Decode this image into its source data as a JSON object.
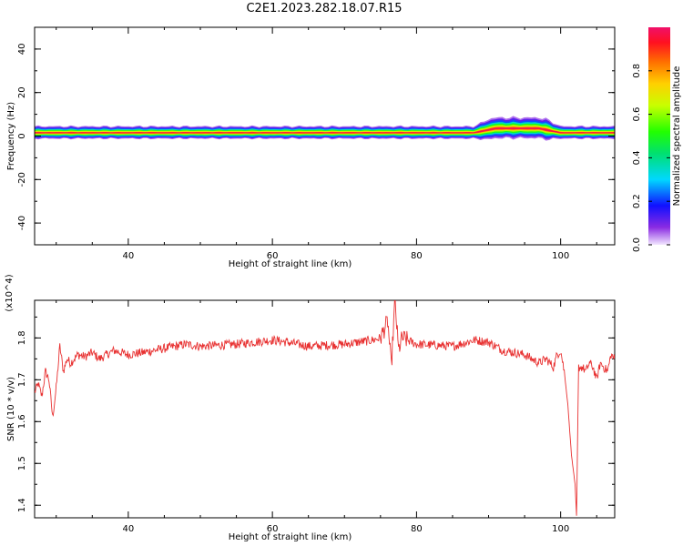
{
  "title": "C2E1.2023.282.18.07.R15",
  "chart_data": [
    {
      "type": "heatmap",
      "xlabel": "Height of straight line (km)",
      "ylabel": "Frequency (Hz)",
      "xlim": [
        27,
        107.5
      ],
      "ylim": [
        -50,
        50
      ],
      "xticks": [
        40,
        60,
        80,
        100
      ],
      "yticks": [
        -40,
        -20,
        0,
        20,
        40
      ],
      "colorbar": {
        "label": "Normalized spectral amplitude",
        "range": [
          0,
          1
        ],
        "ticks": [
          "0.0",
          "0.2",
          "0.4",
          "0.6",
          "0.8"
        ]
      },
      "band": {
        "center_hz": [
          [
            27,
            1.5
          ],
          [
            88,
            1.5
          ],
          [
            91,
            3.5
          ],
          [
            97,
            3.5
          ],
          [
            100,
            1.5
          ],
          [
            107.5,
            1.5
          ]
        ],
        "halfwidth_hz": [
          [
            27,
            3
          ],
          [
            88,
            3
          ],
          [
            90,
            5
          ],
          [
            98,
            5
          ],
          [
            100,
            3
          ],
          [
            107.5,
            3
          ]
        ]
      }
    },
    {
      "type": "line",
      "xlabel": "Height of straight line (km)",
      "ylabel": "SNR (10 * v/v)",
      "y_multiplier": "(x10^4)",
      "xlim": [
        27,
        107.5
      ],
      "ylim": [
        13700,
        18900
      ],
      "xticks": [
        40,
        60,
        80,
        100
      ],
      "yticks": [
        14000,
        15000,
        16000,
        17000,
        18000
      ],
      "ytick_labels": [
        "1.4",
        "1.5",
        "1.6",
        "1.7",
        "1.8"
      ],
      "color": "#e83030",
      "series": [
        {
          "x": [
            27,
            27.5,
            28,
            28.5,
            29,
            29.5,
            30,
            30.5,
            31,
            31.5,
            32,
            33,
            34,
            35,
            36,
            38,
            40,
            42,
            45,
            48,
            50,
            55,
            60,
            62,
            65,
            70,
            74,
            75,
            76,
            76.5,
            77,
            77.5,
            78,
            80,
            85,
            88,
            90,
            92,
            95,
            97,
            98,
            99,
            99.5,
            100,
            100.5,
            101,
            101.5,
            102,
            102.2,
            102.5,
            103,
            103.5,
            104,
            104.5,
            105,
            105.5,
            106,
            106.5,
            107,
            107.5
          ],
          "y": [
            16700,
            16900,
            16600,
            17200,
            17000,
            16100,
            16800,
            17800,
            17200,
            17500,
            17400,
            17600,
            17550,
            17650,
            17500,
            17700,
            17600,
            17650,
            17750,
            17850,
            17800,
            17850,
            17950,
            17900,
            17800,
            17850,
            17950,
            18000,
            18400,
            17300,
            18900,
            17700,
            18000,
            17850,
            17800,
            17950,
            17900,
            17700,
            17600,
            17400,
            17500,
            17300,
            17600,
            17700,
            17200,
            16400,
            15200,
            14500,
            13750,
            17300,
            17300,
            17200,
            17400,
            17300,
            17000,
            17400,
            17300,
            17200,
            17600,
            17500
          ]
        }
      ]
    }
  ]
}
